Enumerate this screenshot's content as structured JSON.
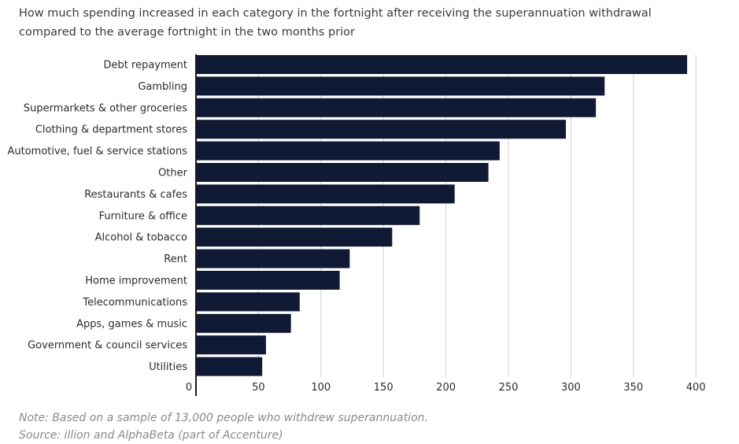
{
  "title": "How much spending increased in each category in the fortnight after receiving the superannuation withdrawal compared to the average fortnight in the two months prior",
  "note": "Note: Based on a sample of 13,000 people who withdrew superannuation.",
  "source": "Source: illion and AlphaBeta (part of Accenture)",
  "colors": {
    "bar": "#111a35",
    "grid": "#d0d0d0",
    "axis": "#1a1a1a"
  },
  "chart_data": {
    "type": "bar",
    "orientation": "horizontal",
    "title": "How much spending increased in each category in the fortnight after receiving the superannuation withdrawal compared to the average fortnight in the two months prior",
    "xlabel": "",
    "ylabel": "",
    "xlim": [
      0,
      400
    ],
    "xticks": [
      0,
      50,
      100,
      150,
      200,
      250,
      300,
      350,
      400
    ],
    "grid": true,
    "categories": [
      "Debt repayment",
      "Gambling",
      "Supermarkets & other groceries",
      "Clothing & department stores",
      "Automotive, fuel & service stations",
      "Other",
      "Restaurants & cafes",
      "Furniture & office",
      "Alcohol & tobacco",
      "Rent",
      "Home improvement",
      "Telecommunications",
      "Apps, games & music",
      "Government & council services",
      "Utilities"
    ],
    "values": [
      393,
      327,
      320,
      296,
      243,
      234,
      207,
      179,
      157,
      123,
      115,
      83,
      76,
      56,
      53
    ]
  }
}
